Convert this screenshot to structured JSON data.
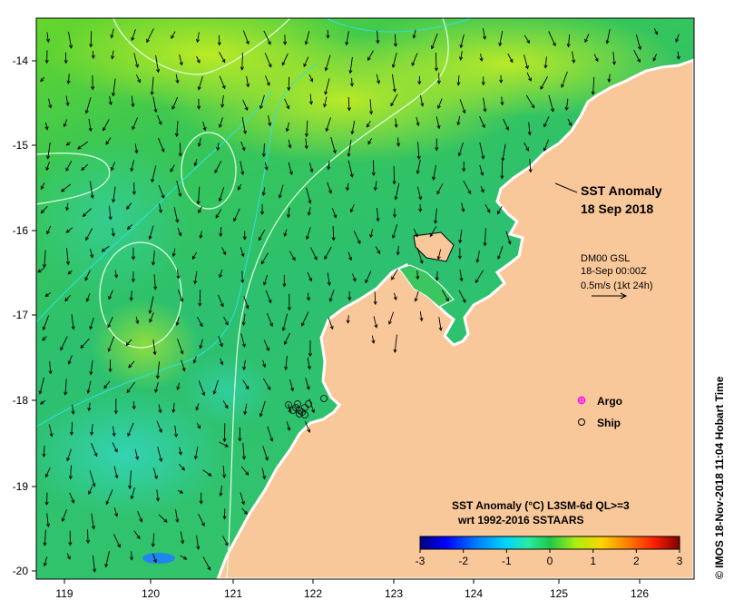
{
  "map": {
    "title": "SST Anomaly",
    "date": "18 Sep 2018",
    "lon_range": [
      118.6,
      126.7
    ],
    "lat_range": [
      -20.1,
      -13.55
    ],
    "lon_ticks": [
      "119",
      "120",
      "121",
      "122",
      "123",
      "124",
      "125",
      "126"
    ],
    "lat_ticks": [
      "-14",
      "-15",
      "-16",
      "-17",
      "-18",
      "-19",
      "-20"
    ],
    "colors": {
      "land": "#f9c89a",
      "coast_white": "#ffffff",
      "contour": "#e6ffe6",
      "isobath": "#30e0e0",
      "argo": "#ff00ff"
    }
  },
  "current_info": {
    "model": "DM00 GSL",
    "time": "18-Sep 00:00Z",
    "scale": "0.5m/s (1kt 24h)"
  },
  "legend": {
    "argo_label": "Argo",
    "ship_label": "Ship"
  },
  "colorbar": {
    "title_line1": "SST Anomaly (°C) L3SM-6d QL>=3",
    "title_line2": "wrt 1992-2016 SSTAARS",
    "ticks": [
      "-3",
      "-2",
      "-1",
      "0",
      "1",
      "2",
      "3"
    ],
    "colors": [
      "#00007f",
      "#0000ff",
      "#007fff",
      "#00d4ff",
      "#2aeba0",
      "#1ec84b",
      "#55d629",
      "#aaee11",
      "#ffd400",
      "#ff7f00",
      "#ff2000",
      "#7f0000"
    ]
  },
  "credit": "© IMOS 18-Nov-2018 11:04 Hobart Time"
}
